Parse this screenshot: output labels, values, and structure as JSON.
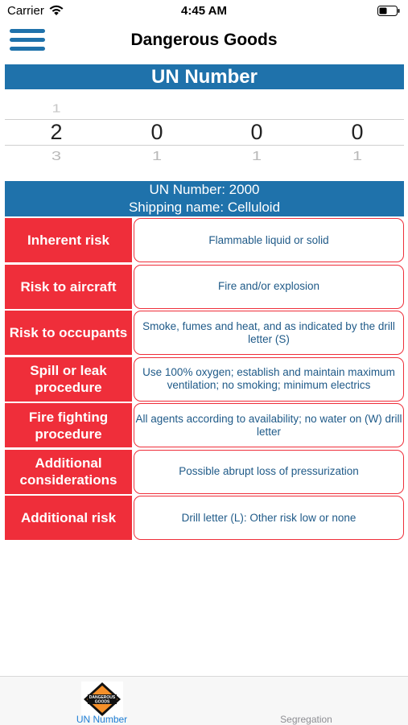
{
  "status": {
    "carrier": "Carrier",
    "time": "4:45 AM"
  },
  "nav": {
    "title": "Dangerous Goods",
    "menu_icon": "hamburger-menu-icon"
  },
  "section_header": "UN Number",
  "picker": {
    "columns": [
      {
        "above": "1",
        "selected": "2",
        "below": "3"
      },
      {
        "above": "",
        "selected": "0",
        "below": "1"
      },
      {
        "above": "",
        "selected": "0",
        "below": "1"
      },
      {
        "above": "",
        "selected": "0",
        "below": "1"
      }
    ]
  },
  "info": {
    "un_number_line": "UN Number: 2000",
    "shipping_name_line": "Shipping name: Celluloid"
  },
  "rows": [
    {
      "label": "Inherent risk",
      "value": "Flammable liquid or solid"
    },
    {
      "label": "Risk to aircraft",
      "value": "Fire and/or explosion"
    },
    {
      "label": "Risk to occupants",
      "value": "Smoke, fumes and heat, and as indicated by the drill letter (S)"
    },
    {
      "label": "Spill or leak procedure",
      "value": "Use 100% oxygen; establish and maintain maximum ventilation; no smoking; minimum electrics"
    },
    {
      "label": "Fire fighting procedure",
      "value": "All agents according to availability; no water on (W) drill letter"
    },
    {
      "label": "Additional considerations",
      "value": "Possible abrupt loss of pressurization"
    },
    {
      "label": "Additional risk",
      "value": "Drill letter (L): Other risk low or none"
    }
  ],
  "tabs": [
    {
      "label": "UN Number",
      "icon": "dangerous-goods-hazard-icon",
      "icon_text": "DANGEROUS GOODS"
    },
    {
      "label": "Segregation"
    }
  ],
  "colors": {
    "accent_blue": "#1f72ab",
    "hazard_red": "#ef2e3a",
    "hazard_orange": "#f5902a",
    "tab_active": "#1e7fd6",
    "tab_inactive": "#8e8e93"
  }
}
